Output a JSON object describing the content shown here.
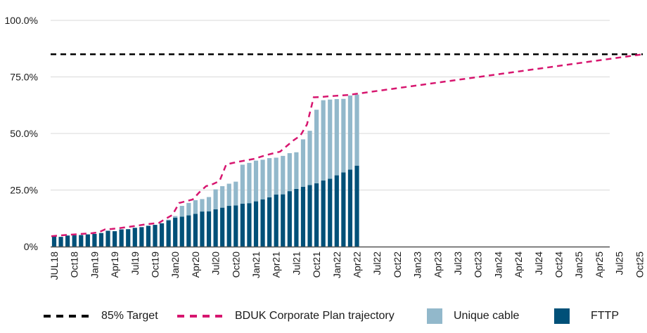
{
  "chart_data": {
    "type": "bar",
    "title": "",
    "xlabel": "",
    "ylabel": "",
    "ylim": [
      0,
      100
    ],
    "yticks": [
      "0%",
      "25.0%",
      "50.0%",
      "75.0%",
      "100.0%"
    ],
    "ytick_values": [
      0,
      25,
      50,
      75,
      100
    ],
    "grid": true,
    "xtick_labels": [
      "JUL18",
      "Oct18",
      "Jan19",
      "Apr19",
      "Jul19",
      "Oct19",
      "Jan20",
      "Apr20",
      "Jul20",
      "Oct20",
      "Jan21",
      "Apr21",
      "Jul21",
      "Oct21",
      "Jan22",
      "Apr22",
      "Jul22",
      "Oct22",
      "Jan23",
      "Apr23",
      "Jul23",
      "Oct23",
      "Jan24",
      "Apr24",
      "Jul24",
      "Oct24",
      "Jan25",
      "Apr25",
      "Jul25",
      "Oct25"
    ],
    "x_months_total": 89,
    "bar_months": [
      0,
      1,
      2,
      3,
      4,
      5,
      6,
      7,
      8,
      9,
      10,
      11,
      12,
      13,
      14,
      15,
      16,
      17,
      18,
      19,
      20,
      21,
      22,
      23,
      24,
      25,
      26,
      27,
      28,
      29,
      30,
      31,
      32,
      33,
      34,
      35,
      36,
      37,
      38,
      39,
      40,
      41,
      42,
      43,
      44,
      45
    ],
    "series": [
      {
        "name": "FTTP",
        "color": "#005078",
        "stack": "bars",
        "values": [
          4.5,
          4.3,
          4.9,
          5.0,
          5.1,
          5.4,
          5.6,
          6.0,
          7.0,
          6.8,
          7.6,
          7.7,
          8.3,
          8.6,
          9.2,
          9.6,
          10.3,
          11.6,
          12.8,
          13.2,
          13.8,
          14.5,
          15.5,
          15.6,
          16.5,
          17.2,
          18.0,
          18.2,
          19.0,
          19.2,
          20.0,
          20.9,
          21.8,
          23.0,
          23.1,
          24.5,
          25.5,
          26.4,
          27.2,
          28.0,
          29.2,
          30.0,
          31.5,
          32.8,
          34.0,
          35.8
        ]
      },
      {
        "name": "Unique cable",
        "color": "#92B8CB",
        "stack": "bars",
        "values": [
          0,
          0,
          0,
          0,
          0,
          0,
          0,
          0,
          0,
          0,
          0,
          0,
          0,
          0,
          0,
          0,
          0,
          0.3,
          0.7,
          4.8,
          5.5,
          6.0,
          5.5,
          6.3,
          8.8,
          9.5,
          9.8,
          10.5,
          17.2,
          17.8,
          18.0,
          17.5,
          17.3,
          16.3,
          17.0,
          16.8,
          16.2,
          21.0,
          24.0,
          32.5,
          35.5,
          35.0,
          33.7,
          32.5,
          32.8,
          31.4
        ]
      },
      {
        "name": "BDUK Corporate Plan trajectory",
        "color": "#D7166F",
        "style": "dashed-line",
        "x_months": [
          0,
          2,
          4,
          6,
          7,
          8,
          9,
          10,
          12,
          14,
          16,
          17,
          18,
          19,
          21,
          22,
          23,
          24,
          25,
          26,
          27,
          28,
          30,
          32,
          34,
          36,
          37,
          38,
          39,
          40,
          41,
          44,
          45,
          89
        ],
        "values": [
          4.6,
          5.1,
          5.5,
          5.9,
          6.3,
          7.6,
          7.8,
          8.1,
          8.9,
          9.8,
          10.5,
          12.3,
          14.0,
          19.3,
          20.8,
          24.0,
          26.7,
          27.6,
          29.0,
          36.3,
          37.0,
          37.6,
          38.7,
          40.5,
          42.0,
          47.0,
          49.0,
          54.0,
          66.0,
          66.1,
          66.4,
          67.0,
          67.4,
          85.0
        ]
      },
      {
        "name": "85% Target",
        "color": "#000000",
        "style": "dashed-line",
        "values": [
          85
        ]
      }
    ],
    "legend_position": "bottom",
    "legend": [
      {
        "label": "85% Target",
        "kind": "dash",
        "color": "#000000"
      },
      {
        "label": "BDUK Corporate Plan trajectory",
        "kind": "dash",
        "color": "#D7166F"
      },
      {
        "label": "Unique cable",
        "kind": "swatch",
        "color": "#92B8CB"
      },
      {
        "label": "FTTP",
        "kind": "swatch",
        "color": "#005078"
      }
    ]
  }
}
